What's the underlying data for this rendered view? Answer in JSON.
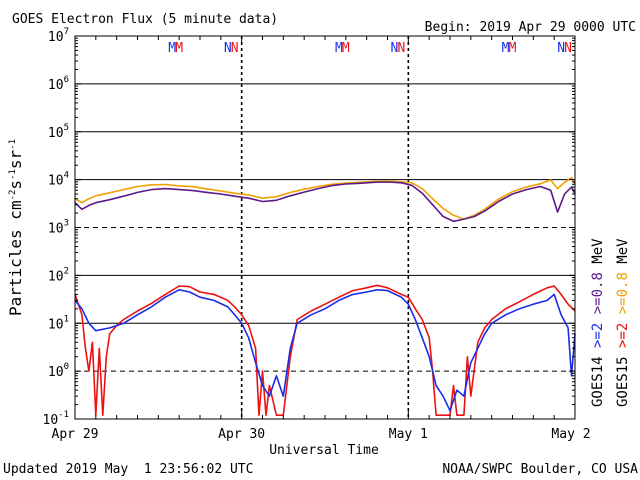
{
  "header": {
    "title": "GOES Electron Flux (5 minute data)",
    "begin": "Begin: 2019 Apr 29 0000 UTC"
  },
  "footer": {
    "updated": "Updated 2019 May  1 23:56:02 UTC",
    "credit": "NOAA/SWPC Boulder, CO USA"
  },
  "colors": {
    "goes14_2mev": "#1a2ee8",
    "goes15_2mev": "#ee1111",
    "goes14_08mev": "#5a1a8a",
    "goes15_08mev": "#f0a000"
  },
  "chart_data": {
    "type": "line",
    "title": "GOES Electron Flux (5 minute data)",
    "xlabel": "Universal Time",
    "ylabel": "Particles cm-2s-1sr-1",
    "ylabel_parts": {
      "base": "Particles cm",
      "e1": "-2",
      "mid1": "s",
      "e2": "-1",
      "mid2": "sr",
      "e3": "-1"
    },
    "yscale": "log",
    "ylim": [
      0.1,
      10000000
    ],
    "yticks": [
      {
        "value": 0.1,
        "base": "10",
        "exp": "-1"
      },
      {
        "value": 1,
        "base": "10",
        "exp": "0"
      },
      {
        "value": 10,
        "base": "10",
        "exp": "1"
      },
      {
        "value": 100,
        "base": "10",
        "exp": "2"
      },
      {
        "value": 1000,
        "base": "10",
        "exp": "3"
      },
      {
        "value": 10000,
        "base": "10",
        "exp": "4"
      },
      {
        "value": 100000,
        "base": "10",
        "exp": "5"
      },
      {
        "value": 1000000,
        "base": "10",
        "exp": "6"
      },
      {
        "value": 10000000,
        "base": "10",
        "exp": "7"
      }
    ],
    "xlim": [
      "2019-04-29 00:00",
      "2019-05-02 00:00"
    ],
    "xticks": [
      {
        "t": "2019-04-29 00:00",
        "label": "Apr 29"
      },
      {
        "t": "2019-04-30 00:00",
        "label": "Apr 30"
      },
      {
        "t": "2019-05-01 00:00",
        "label": "May 1"
      },
      {
        "t": "2019-05-02 00:00",
        "label": "May 2"
      }
    ],
    "grid": true,
    "solid_lines": [
      10,
      100,
      1000000
    ],
    "dashed_lines": [
      1,
      1000
    ],
    "markers": [
      {
        "label": "M",
        "t": "2019-04-29 14:00",
        "color": "#1a2ee8"
      },
      {
        "label": "M",
        "t": "2019-04-29 15:00",
        "color": "#ee1111"
      },
      {
        "label": "N",
        "t": "2019-04-29 22:00",
        "color": "#1a2ee8"
      },
      {
        "label": "N",
        "t": "2019-04-29 23:00",
        "color": "#ee1111"
      },
      {
        "label": "M",
        "t": "2019-04-30 14:00",
        "color": "#1a2ee8"
      },
      {
        "label": "M",
        "t": "2019-04-30 15:00",
        "color": "#ee1111"
      },
      {
        "label": "N",
        "t": "2019-04-30 22:00",
        "color": "#1a2ee8"
      },
      {
        "label": "N",
        "t": "2019-04-30 23:00",
        "color": "#ee1111"
      },
      {
        "label": "M",
        "t": "2019-05-01 14:00",
        "color": "#1a2ee8"
      },
      {
        "label": "M",
        "t": "2019-05-01 15:00",
        "color": "#ee1111"
      },
      {
        "label": "N",
        "t": "2019-05-01 22:00",
        "color": "#1a2ee8"
      },
      {
        "label": "N",
        "t": "2019-05-01 23:00",
        "color": "#ee1111"
      }
    ],
    "legend": {
      "placement": "right",
      "goes14": "GOES14",
      "goes15": "GOES15",
      "ge2": ">=2",
      "ge08": ">=0.8",
      "unit": "MeV"
    },
    "series": [
      {
        "name": "GOES15 >=0.8 MeV",
        "color": "#f0a000",
        "points": [
          [
            "2019-04-29 00:00",
            4000
          ],
          [
            "2019-04-29 01:00",
            3300
          ],
          [
            "2019-04-29 02:00",
            4000
          ],
          [
            "2019-04-29 03:00",
            4600
          ],
          [
            "2019-04-29 05:00",
            5300
          ],
          [
            "2019-04-29 07:00",
            6200
          ],
          [
            "2019-04-29 09:00",
            7200
          ],
          [
            "2019-04-29 11:00",
            7800
          ],
          [
            "2019-04-29 13:00",
            7900
          ],
          [
            "2019-04-29 15:00",
            7400
          ],
          [
            "2019-04-29 17:00",
            7100
          ],
          [
            "2019-04-29 19:00",
            6400
          ],
          [
            "2019-04-29 21:00",
            5800
          ],
          [
            "2019-04-29 23:00",
            5200
          ],
          [
            "2019-04-30 01:00",
            4800
          ],
          [
            "2019-04-30 03:00",
            4100
          ],
          [
            "2019-04-30 05:00",
            4400
          ],
          [
            "2019-04-30 07:00",
            5400
          ],
          [
            "2019-04-30 09:00",
            6300
          ],
          [
            "2019-04-30 11:00",
            7200
          ],
          [
            "2019-04-30 13:00",
            8000
          ],
          [
            "2019-04-30 15:00",
            8500
          ],
          [
            "2019-04-30 17:00",
            8800
          ],
          [
            "2019-04-30 19:00",
            9200
          ],
          [
            "2019-04-30 21:00",
            9300
          ],
          [
            "2019-04-30 23:00",
            9000
          ],
          [
            "2019-05-01 00:30",
            8600
          ],
          [
            "2019-05-01 02:00",
            6500
          ],
          [
            "2019-05-01 03:30",
            4000
          ],
          [
            "2019-05-01 05:00",
            2500
          ],
          [
            "2019-05-01 06:30",
            1800
          ],
          [
            "2019-05-01 08:00",
            1500
          ],
          [
            "2019-05-01 09:30",
            1800
          ],
          [
            "2019-05-01 11:00",
            2400
          ],
          [
            "2019-05-01 13:00",
            3900
          ],
          [
            "2019-05-01 15:00",
            5600
          ],
          [
            "2019-05-01 17:00",
            7000
          ],
          [
            "2019-05-01 19:00",
            8200
          ],
          [
            "2019-05-01 20:30",
            9800
          ],
          [
            "2019-05-01 21:30",
            6500
          ],
          [
            "2019-05-01 22:30",
            8800
          ],
          [
            "2019-05-01 23:30",
            11000
          ],
          [
            "2019-05-02 00:00",
            8000
          ]
        ]
      },
      {
        "name": "GOES14 >=0.8 MeV",
        "color": "#5a1a8a",
        "points": [
          [
            "2019-04-29 00:00",
            3300
          ],
          [
            "2019-04-29 01:00",
            2400
          ],
          [
            "2019-04-29 02:00",
            2900
          ],
          [
            "2019-04-29 03:00",
            3300
          ],
          [
            "2019-04-29 05:00",
            3800
          ],
          [
            "2019-04-29 07:00",
            4500
          ],
          [
            "2019-04-29 09:00",
            5400
          ],
          [
            "2019-04-29 11:00",
            6200
          ],
          [
            "2019-04-29 13:00",
            6500
          ],
          [
            "2019-04-29 15:00",
            6200
          ],
          [
            "2019-04-29 17:00",
            5900
          ],
          [
            "2019-04-29 19:00",
            5400
          ],
          [
            "2019-04-29 21:00",
            5000
          ],
          [
            "2019-04-29 23:00",
            4500
          ],
          [
            "2019-04-30 01:00",
            4100
          ],
          [
            "2019-04-30 03:00",
            3500
          ],
          [
            "2019-04-30 05:00",
            3700
          ],
          [
            "2019-04-30 07:00",
            4600
          ],
          [
            "2019-04-30 09:00",
            5500
          ],
          [
            "2019-04-30 11:00",
            6500
          ],
          [
            "2019-04-30 13:00",
            7500
          ],
          [
            "2019-04-30 15:00",
            8100
          ],
          [
            "2019-04-30 17:00",
            8400
          ],
          [
            "2019-04-30 19:00",
            8800
          ],
          [
            "2019-04-30 21:00",
            8900
          ],
          [
            "2019-04-30 23:00",
            8600
          ],
          [
            "2019-05-01 00:30",
            7600
          ],
          [
            "2019-05-01 02:00",
            5200
          ],
          [
            "2019-05-01 03:30",
            3000
          ],
          [
            "2019-05-01 05:00",
            1700
          ],
          [
            "2019-05-01 06:30",
            1350
          ],
          [
            "2019-05-01 08:00",
            1500
          ],
          [
            "2019-05-01 09:30",
            1700
          ],
          [
            "2019-05-01 11:00",
            2200
          ],
          [
            "2019-05-01 13:00",
            3500
          ],
          [
            "2019-05-01 15:00",
            5000
          ],
          [
            "2019-05-01 17:00",
            6200
          ],
          [
            "2019-05-01 19:00",
            7200
          ],
          [
            "2019-05-01 20:30",
            6000
          ],
          [
            "2019-05-01 21:30",
            2100
          ],
          [
            "2019-05-01 22:30",
            5000
          ],
          [
            "2019-05-01 23:30",
            7000
          ],
          [
            "2019-05-02 00:00",
            5000
          ]
        ]
      },
      {
        "name": "GOES15 >=2 MeV",
        "color": "#ee1111",
        "points": [
          [
            "2019-04-29 00:00",
            40
          ],
          [
            "2019-04-29 01:00",
            15
          ],
          [
            "2019-04-29 01:30",
            3
          ],
          [
            "2019-04-29 02:00",
            1
          ],
          [
            "2019-04-29 02:30",
            4
          ],
          [
            "2019-04-29 03:00",
            0.12
          ],
          [
            "2019-04-29 03:30",
            3
          ],
          [
            "2019-04-29 04:00",
            0.12
          ],
          [
            "2019-04-29 04:30",
            2
          ],
          [
            "2019-04-29 05:00",
            6
          ],
          [
            "2019-04-29 06:00",
            9
          ],
          [
            "2019-04-29 07:00",
            12
          ],
          [
            "2019-04-29 09:00",
            18
          ],
          [
            "2019-04-29 11:00",
            26
          ],
          [
            "2019-04-29 13:00",
            40
          ],
          [
            "2019-04-29 15:00",
            60
          ],
          [
            "2019-04-29 16:30",
            58
          ],
          [
            "2019-04-29 18:00",
            45
          ],
          [
            "2019-04-29 20:00",
            40
          ],
          [
            "2019-04-29 22:00",
            30
          ],
          [
            "2019-04-29 23:00",
            22
          ],
          [
            "2019-04-30 00:00",
            15
          ],
          [
            "2019-04-30 01:00",
            9
          ],
          [
            "2019-04-30 02:00",
            3
          ],
          [
            "2019-04-30 02:30",
            0.12
          ],
          [
            "2019-04-30 03:00",
            1
          ],
          [
            "2019-04-30 03:30",
            0.12
          ],
          [
            "2019-04-30 04:00",
            0.5
          ],
          [
            "2019-04-30 05:00",
            0.12
          ],
          [
            "2019-04-30 06:00",
            0.12
          ],
          [
            "2019-04-30 07:00",
            2
          ],
          [
            "2019-04-30 08:00",
            12
          ],
          [
            "2019-04-30 10:00",
            18
          ],
          [
            "2019-04-30 12:00",
            25
          ],
          [
            "2019-04-30 14:00",
            35
          ],
          [
            "2019-04-30 16:00",
            48
          ],
          [
            "2019-04-30 18:00",
            55
          ],
          [
            "2019-04-30 19:30",
            62
          ],
          [
            "2019-04-30 21:00",
            55
          ],
          [
            "2019-04-30 23:00",
            40
          ],
          [
            "2019-05-01 00:00",
            35
          ],
          [
            "2019-05-01 01:00",
            20
          ],
          [
            "2019-05-01 02:00",
            12
          ],
          [
            "2019-05-01 03:00",
            5
          ],
          [
            "2019-05-01 03:30",
            1
          ],
          [
            "2019-05-01 04:00",
            0.12
          ],
          [
            "2019-05-01 05:00",
            0.12
          ],
          [
            "2019-05-01 06:00",
            0.12
          ],
          [
            "2019-05-01 06:30",
            0.5
          ],
          [
            "2019-05-01 07:00",
            0.12
          ],
          [
            "2019-05-01 08:00",
            0.12
          ],
          [
            "2019-05-01 08:30",
            2
          ],
          [
            "2019-05-01 09:00",
            0.3
          ],
          [
            "2019-05-01 10:00",
            4
          ],
          [
            "2019-05-01 11:00",
            8
          ],
          [
            "2019-05-01 12:00",
            12
          ],
          [
            "2019-05-01 14:00",
            20
          ],
          [
            "2019-05-01 16:00",
            28
          ],
          [
            "2019-05-01 18:00",
            40
          ],
          [
            "2019-05-01 20:00",
            55
          ],
          [
            "2019-05-01 21:00",
            60
          ],
          [
            "2019-05-01 22:00",
            40
          ],
          [
            "2019-05-01 23:00",
            25
          ],
          [
            "2019-05-02 00:00",
            18
          ]
        ]
      },
      {
        "name": "GOES14 >=2 MeV",
        "color": "#1a2ee8",
        "points": [
          [
            "2019-04-29 00:00",
            30
          ],
          [
            "2019-04-29 01:00",
            20
          ],
          [
            "2019-04-29 02:00",
            10
          ],
          [
            "2019-04-29 03:00",
            7
          ],
          [
            "2019-04-29 05:00",
            8
          ],
          [
            "2019-04-29 07:00",
            10
          ],
          [
            "2019-04-29 09:00",
            15
          ],
          [
            "2019-04-29 11:00",
            22
          ],
          [
            "2019-04-29 13:00",
            35
          ],
          [
            "2019-04-29 15:00",
            50
          ],
          [
            "2019-04-29 16:30",
            45
          ],
          [
            "2019-04-29 18:00",
            35
          ],
          [
            "2019-04-29 20:00",
            30
          ],
          [
            "2019-04-29 22:00",
            22
          ],
          [
            "2019-04-29 23:00",
            15
          ],
          [
            "2019-04-30 00:00",
            10
          ],
          [
            "2019-04-30 01:00",
            5
          ],
          [
            "2019-04-30 02:00",
            1.5
          ],
          [
            "2019-04-30 03:00",
            0.5
          ],
          [
            "2019-04-30 04:00",
            0.3
          ],
          [
            "2019-04-30 05:00",
            0.8
          ],
          [
            "2019-04-30 06:00",
            0.3
          ],
          [
            "2019-04-30 07:00",
            3
          ],
          [
            "2019-04-30 08:00",
            10
          ],
          [
            "2019-04-30 10:00",
            15
          ],
          [
            "2019-04-30 12:00",
            20
          ],
          [
            "2019-04-30 14:00",
            30
          ],
          [
            "2019-04-30 16:00",
            40
          ],
          [
            "2019-04-30 18:00",
            45
          ],
          [
            "2019-04-30 19:30",
            50
          ],
          [
            "2019-04-30 21:00",
            48
          ],
          [
            "2019-04-30 23:00",
            35
          ],
          [
            "2019-05-01 00:00",
            25
          ],
          [
            "2019-05-01 01:00",
            12
          ],
          [
            "2019-05-01 02:00",
            5
          ],
          [
            "2019-05-01 03:00",
            2
          ],
          [
            "2019-05-01 04:00",
            0.5
          ],
          [
            "2019-05-01 05:00",
            0.3
          ],
          [
            "2019-05-01 06:00",
            0.15
          ],
          [
            "2019-05-01 07:00",
            0.4
          ],
          [
            "2019-05-01 08:00",
            0.3
          ],
          [
            "2019-05-01 09:00",
            1.5
          ],
          [
            "2019-05-01 10:00",
            3
          ],
          [
            "2019-05-01 11:00",
            6
          ],
          [
            "2019-05-01 12:00",
            10
          ],
          [
            "2019-05-01 14:00",
            15
          ],
          [
            "2019-05-01 16:00",
            20
          ],
          [
            "2019-05-01 18:00",
            25
          ],
          [
            "2019-05-01 20:00",
            30
          ],
          [
            "2019-05-01 21:00",
            40
          ],
          [
            "2019-05-01 22:00",
            15
          ],
          [
            "2019-05-01 23:00",
            8
          ],
          [
            "2019-05-01 23:30",
            0.8
          ],
          [
            "2019-05-02 00:00",
            6
          ]
        ]
      }
    ]
  }
}
